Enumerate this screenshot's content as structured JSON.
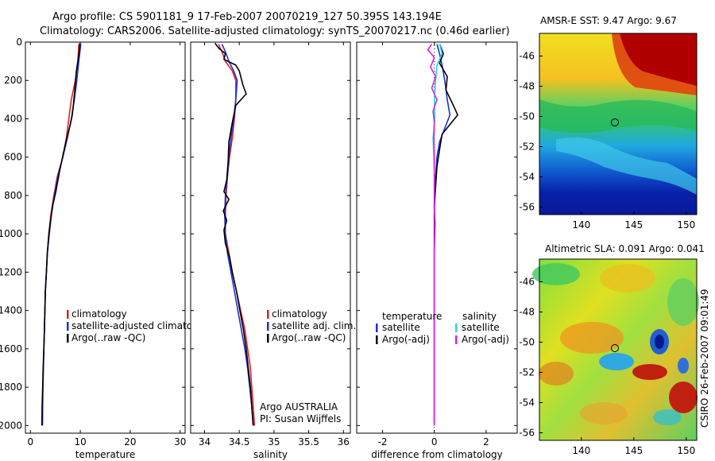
{
  "title_lines": [
    "Argo profile: CS 5901181_9 17-Feb-2007 20070219_127 50.395S 143.194E",
    "Climatology: CARS2006. Satellite-adjusted climatology: synTS_20070217.nc (0.46d earlier)"
  ],
  "side_text": "CSIRO 26-Feb-2007 09:01:49",
  "colors": {
    "climatology": "#e02020",
    "satellite": "#1f2fd6",
    "argo": "#000000",
    "cyan": "#18dede",
    "magenta": "#e020e0"
  },
  "chart_data": [
    {
      "type": "line",
      "xlabel": "temperature",
      "ylabel": "",
      "xlim": [
        -1,
        31
      ],
      "ylim": [
        2040,
        0
      ],
      "xticks": [
        0,
        10,
        20,
        30
      ],
      "yticks": [
        0,
        200,
        400,
        600,
        800,
        1000,
        1200,
        1400,
        1600,
        1800,
        2000
      ],
      "legend": [
        "climatology",
        "satellite-adjusted climatolog",
        "Argo(..raw -QC)"
      ],
      "series": [
        {
          "name": "climatology",
          "color": "#e02020",
          "points": [
            [
              9.7,
              10
            ],
            [
              9.5,
              100
            ],
            [
              9.0,
              200
            ],
            [
              8.2,
              300
            ],
            [
              7.7,
              400
            ],
            [
              7.2,
              500
            ],
            [
              6.5,
              600
            ],
            [
              5.4,
              700
            ],
            [
              4.7,
              800
            ],
            [
              4.1,
              900
            ],
            [
              3.7,
              1000
            ],
            [
              3.4,
              1100
            ],
            [
              3.2,
              1200
            ],
            [
              3.0,
              1300
            ],
            [
              2.9,
              1400
            ],
            [
              2.8,
              1500
            ],
            [
              2.7,
              1600
            ],
            [
              2.6,
              1700
            ],
            [
              2.5,
              1800
            ],
            [
              2.45,
              1900
            ],
            [
              2.4,
              2000
            ]
          ]
        },
        {
          "name": "satellite-adjusted climatolog",
          "color": "#1f2fd6",
          "points": [
            [
              10.1,
              10
            ],
            [
              9.7,
              100
            ],
            [
              9.3,
              200
            ],
            [
              8.8,
              300
            ],
            [
              8.2,
              400
            ],
            [
              7.4,
              500
            ],
            [
              6.5,
              600
            ],
            [
              5.5,
              700
            ],
            [
              4.8,
              800
            ],
            [
              4.2,
              900
            ],
            [
              3.8,
              1000
            ],
            [
              3.4,
              1100
            ],
            [
              3.2,
              1200
            ],
            [
              3.0,
              1300
            ],
            [
              2.9,
              1400
            ],
            [
              2.8,
              1500
            ],
            [
              2.7,
              1600
            ],
            [
              2.6,
              1700
            ],
            [
              2.5,
              1800
            ],
            [
              2.45,
              1900
            ],
            [
              2.4,
              2000
            ]
          ]
        },
        {
          "name": "Argo(..raw -QC)",
          "color": "#000000",
          "points": [
            [
              9.9,
              5
            ],
            [
              9.8,
              50
            ],
            [
              9.5,
              100
            ],
            [
              9.2,
              150
            ],
            [
              8.9,
              250
            ],
            [
              8.6,
              330
            ],
            [
              8.4,
              380
            ],
            [
              8.0,
              430
            ],
            [
              7.3,
              500
            ],
            [
              6.6,
              580
            ],
            [
              5.8,
              680
            ],
            [
              5.1,
              780
            ],
            [
              4.5,
              850
            ],
            [
              4.1,
              920
            ],
            [
              3.7,
              1000
            ],
            [
              3.4,
              1100
            ],
            [
              3.2,
              1200
            ],
            [
              3.0,
              1300
            ],
            [
              2.9,
              1400
            ],
            [
              2.8,
              1500
            ],
            [
              2.7,
              1600
            ],
            [
              2.55,
              1700
            ],
            [
              2.45,
              1800
            ],
            [
              2.35,
              1900
            ],
            [
              2.3,
              2000
            ]
          ]
        }
      ]
    },
    {
      "type": "line",
      "xlabel": "salinity",
      "ylabel": "",
      "xlim": [
        33.8,
        36.1
      ],
      "ylim": [
        2040,
        0
      ],
      "xticks": [
        34,
        34.5,
        35,
        35.5,
        36
      ],
      "legend": [
        "climatology",
        "satellite adj. clim.",
        "Argo(..raw -QC)"
      ],
      "annotations": [
        "Argo AUSTRALIA",
        "PI: Susan Wijffels"
      ],
      "series": [
        {
          "name": "climatology",
          "color": "#e02020",
          "points": [
            [
              34.2,
              10
            ],
            [
              34.25,
              50
            ],
            [
              34.3,
              100
            ],
            [
              34.4,
              150
            ],
            [
              34.45,
              200
            ],
            [
              34.45,
              300
            ],
            [
              34.43,
              400
            ],
            [
              34.4,
              500
            ],
            [
              34.36,
              600
            ],
            [
              34.33,
              700
            ],
            [
              34.31,
              800
            ],
            [
              34.3,
              900
            ],
            [
              34.3,
              1000
            ],
            [
              34.35,
              1100
            ],
            [
              34.4,
              1200
            ],
            [
              34.46,
              1300
            ],
            [
              34.52,
              1400
            ],
            [
              34.58,
              1500
            ],
            [
              34.62,
              1600
            ],
            [
              34.66,
              1700
            ],
            [
              34.68,
              1800
            ],
            [
              34.7,
              1900
            ],
            [
              34.72,
              2000
            ]
          ]
        },
        {
          "name": "satellite adj. clim.",
          "color": "#1f2fd6",
          "points": [
            [
              34.25,
              10
            ],
            [
              34.3,
              50
            ],
            [
              34.35,
              100
            ],
            [
              34.42,
              150
            ],
            [
              34.47,
              200
            ],
            [
              34.45,
              300
            ],
            [
              34.42,
              400
            ],
            [
              34.38,
              500
            ],
            [
              34.35,
              600
            ],
            [
              34.33,
              700
            ],
            [
              34.3,
              800
            ],
            [
              34.29,
              900
            ],
            [
              34.3,
              1000
            ],
            [
              34.33,
              1100
            ],
            [
              34.38,
              1200
            ],
            [
              34.43,
              1300
            ],
            [
              34.48,
              1400
            ],
            [
              34.53,
              1500
            ],
            [
              34.58,
              1600
            ],
            [
              34.62,
              1700
            ],
            [
              34.65,
              1800
            ],
            [
              34.68,
              1900
            ],
            [
              34.7,
              2000
            ]
          ]
        },
        {
          "name": "Argo(..raw -QC)",
          "color": "#000000",
          "points": [
            [
              34.15,
              5
            ],
            [
              34.2,
              30
            ],
            [
              34.3,
              60
            ],
            [
              34.28,
              90
            ],
            [
              34.45,
              120
            ],
            [
              34.5,
              150
            ],
            [
              34.55,
              220
            ],
            [
              34.6,
              270
            ],
            [
              34.45,
              330
            ],
            [
              34.4,
              420
            ],
            [
              34.35,
              520
            ],
            [
              34.34,
              620
            ],
            [
              34.32,
              720
            ],
            [
              34.28,
              780
            ],
            [
              34.35,
              820
            ],
            [
              34.27,
              880
            ],
            [
              34.32,
              930
            ],
            [
              34.28,
              980
            ],
            [
              34.3,
              1050
            ],
            [
              34.36,
              1120
            ],
            [
              34.4,
              1200
            ],
            [
              34.46,
              1300
            ],
            [
              34.51,
              1400
            ],
            [
              34.56,
              1500
            ],
            [
              34.6,
              1600
            ],
            [
              34.63,
              1700
            ],
            [
              34.66,
              1800
            ],
            [
              34.68,
              1900
            ],
            [
              34.7,
              2000
            ]
          ]
        }
      ]
    },
    {
      "type": "line",
      "xlabel": "difference from climatology",
      "ylabel": "",
      "xlim": [
        -3,
        3.2
      ],
      "ylim": [
        2040,
        0
      ],
      "xticks": [
        -2,
        0,
        2
      ],
      "legend_headers": [
        "temperature",
        "salinity"
      ],
      "legend": [
        "satellite",
        "Argo(-adj)",
        "satellite",
        "Argo(-adj)"
      ],
      "series": [
        {
          "name": "satellite",
          "group": "temperature",
          "color": "#1f2fd6",
          "points": [
            [
              0.1,
              10
            ],
            [
              0.2,
              60
            ],
            [
              0.3,
              120
            ],
            [
              0.4,
              200
            ],
            [
              0.5,
              300
            ],
            [
              0.6,
              380
            ],
            [
              0.4,
              450
            ],
            [
              0.2,
              520
            ],
            [
              0.1,
              600
            ],
            [
              0.05,
              700
            ],
            [
              0.02,
              800
            ],
            [
              0.0,
              900
            ],
            [
              0.0,
              1000
            ],
            [
              0.0,
              1200
            ],
            [
              0.0,
              1400
            ],
            [
              0.0,
              1600
            ],
            [
              0.0,
              1800
            ],
            [
              0.0,
              2000
            ]
          ]
        },
        {
          "name": "Argo(-adj)",
          "group": "temperature",
          "color": "#000000",
          "points": [
            [
              0.2,
              10
            ],
            [
              0.35,
              60
            ],
            [
              0.2,
              110
            ],
            [
              0.5,
              180
            ],
            [
              0.45,
              250
            ],
            [
              0.7,
              320
            ],
            [
              0.9,
              380
            ],
            [
              0.6,
              430
            ],
            [
              0.3,
              480
            ],
            [
              0.2,
              560
            ],
            [
              0.1,
              650
            ],
            [
              0.05,
              750
            ],
            [
              0.0,
              850
            ],
            [
              0.02,
              950
            ],
            [
              0.0,
              1100
            ],
            [
              0.0,
              1300
            ],
            [
              0.0,
              1500
            ],
            [
              0.0,
              1700
            ],
            [
              0.0,
              1900
            ],
            [
              0.0,
              2000
            ]
          ]
        },
        {
          "name": "satellite",
          "group": "salinity",
          "color": "#18dede",
          "points": [
            [
              0.2,
              10
            ],
            [
              0.3,
              60
            ],
            [
              0.1,
              120
            ],
            [
              0.05,
              200
            ],
            [
              0.0,
              300
            ],
            [
              0.02,
              400
            ],
            [
              -0.05,
              500
            ],
            [
              -0.02,
              600
            ],
            [
              0.0,
              700
            ],
            [
              0.0,
              800
            ],
            [
              0.0,
              1000
            ],
            [
              0.0,
              1200
            ],
            [
              0.0,
              1400
            ],
            [
              0.0,
              1600
            ],
            [
              0.0,
              1800
            ],
            [
              0.0,
              2000
            ]
          ]
        },
        {
          "name": "Argo(-adj)",
          "group": "salinity",
          "color": "#e020e0",
          "points": [
            [
              -0.1,
              10
            ],
            [
              -0.25,
              40
            ],
            [
              0.0,
              80
            ],
            [
              -0.15,
              130
            ],
            [
              0.05,
              180
            ],
            [
              -0.1,
              240
            ],
            [
              0.1,
              300
            ],
            [
              -0.05,
              360
            ],
            [
              0.0,
              420
            ],
            [
              -0.02,
              500
            ],
            [
              0.0,
              600
            ],
            [
              0.0,
              800
            ],
            [
              0.0,
              1000
            ],
            [
              0.0,
              1200
            ],
            [
              0.0,
              1400
            ],
            [
              0.0,
              1600
            ],
            [
              0.0,
              1800
            ],
            [
              0.0,
              2000
            ]
          ]
        }
      ]
    },
    {
      "type": "heatmap",
      "title": "AMSR-E SST: 9.47 Argo: 9.67",
      "xlim": [
        136,
        151
      ],
      "ylim": [
        -56.5,
        -44.5
      ],
      "xticks": [
        140,
        145,
        150
      ],
      "yticks": [
        -46,
        -48,
        -50,
        -52,
        -54,
        -56
      ],
      "marker": [
        143.194,
        -50.395
      ]
    },
    {
      "type": "heatmap",
      "title": "Altimetric SLA: 0.091 Argo: 0.041",
      "xlim": [
        136,
        151
      ],
      "ylim": [
        -56.5,
        -44.5
      ],
      "xticks": [
        140,
        145,
        150
      ],
      "yticks": [
        -46,
        -48,
        -50,
        -52,
        -54,
        -56
      ],
      "marker": [
        143.194,
        -50.395
      ]
    }
  ]
}
